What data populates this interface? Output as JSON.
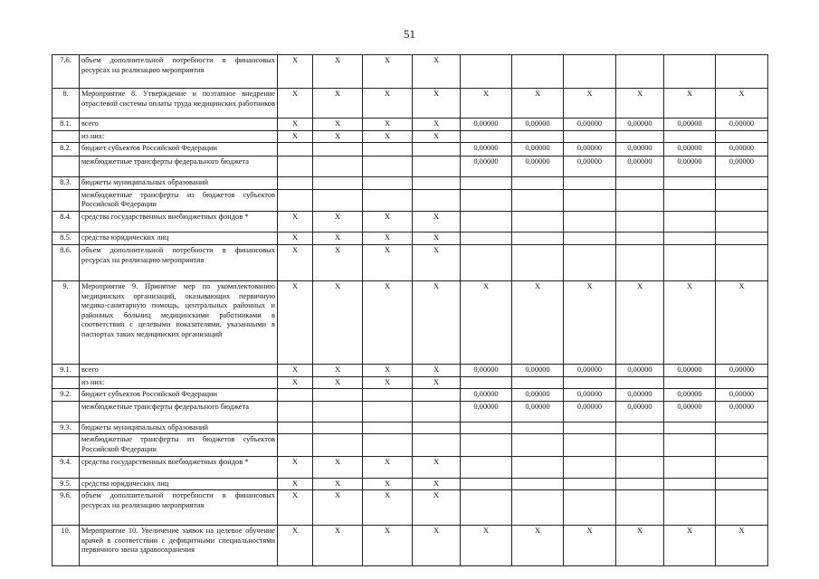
{
  "header": {
    "page_number": "51"
  },
  "table": {
    "rows": [
      [
        "7.6.",
        "объем дополнительной потребности в финансовых ресурсах на реализацию мероприятия",
        "X",
        "X",
        "X",
        "X",
        null,
        null,
        null,
        null,
        null,
        null
      ],
      [
        "8.",
        "Мероприятие 8. Утверждение и поэтапное внедрение отраслевой системы оплаты труда медицинских работников",
        "X",
        "X",
        "X",
        "X",
        "X",
        "X",
        "X",
        "X",
        "X",
        "X"
      ],
      [
        "8.1.",
        "всего",
        "X",
        "X",
        "X",
        "X",
        "0,00000",
        "0,00000",
        "0,00000",
        "0,00000",
        "0,00000",
        "0,00000"
      ],
      [
        null,
        "из них:",
        "X",
        "X",
        "X",
        "X",
        null,
        null,
        null,
        null,
        null,
        null
      ],
      [
        "8.2.",
        "бюджет субъектов Российской Федерации",
        null,
        null,
        null,
        null,
        "0,00000",
        "0,00000",
        "0,00000",
        "0,00000",
        "0,00000",
        "0,00000"
      ],
      [
        null,
        "межбюджетные трансферты федерального бюджета",
        null,
        null,
        null,
        null,
        "0,00000",
        "0,00000",
        "0,00000",
        "0,00000",
        "0,00000",
        "0,00000"
      ],
      [
        "8.3.",
        "бюджеты муниципальных образований",
        null,
        null,
        null,
        null,
        null,
        null,
        null,
        null,
        null,
        null
      ],
      [
        null,
        "межбюджетные трансферты из бюджетов субъектов Российской Федерации",
        null,
        null,
        null,
        null,
        null,
        null,
        null,
        null,
        null,
        null
      ],
      [
        "8.4.",
        "средства государственных внебюджетных фондов *",
        "X",
        "X",
        "X",
        "X",
        null,
        null,
        null,
        null,
        null,
        null
      ],
      [
        "8.5.",
        "средства юридических лиц",
        "X",
        "X",
        "X",
        "X",
        null,
        null,
        null,
        null,
        null,
        null
      ],
      [
        "8.6.",
        "объем дополнительной потребности в финансовых ресурсах на реализацию мероприятия",
        "X",
        "X",
        "X",
        "X",
        null,
        null,
        null,
        null,
        null,
        null
      ],
      [
        "9.",
        "Мероприятие 9. Принятие мер по укомплектованию медицинских организаций, оказывающих первичную медико-санитарную помощь, центральных районных и районных больниц медицинскими работниками в соответствии с целевыми показателями, указанными в паспортах таких медицинских организаций",
        "X",
        "X",
        "X",
        "X",
        "X",
        "X",
        "X",
        "X",
        "X",
        "X"
      ],
      [
        "9.1.",
        "всего",
        "X",
        "X",
        "X",
        "X",
        "0,00000",
        "0,00000",
        "0,00000",
        "0,00000",
        "0,00000",
        "0,00000"
      ],
      [
        null,
        "из них:",
        "X",
        "X",
        "X",
        "X",
        null,
        null,
        null,
        null,
        null,
        null
      ],
      [
        "9.2.",
        "бюджет субъектов Российской Федерации",
        null,
        null,
        null,
        null,
        "0,00000",
        "0,00000",
        "0,00000",
        "0,00000",
        "0,00000",
        "0,00000"
      ],
      [
        null,
        "межбюджетные трансферты федерального бюджета",
        null,
        null,
        null,
        null,
        "0,00000",
        "0,00000",
        "0,00000",
        "0,00000",
        "0,00000",
        "0,00000"
      ],
      [
        "9.3.",
        "бюджеты муниципальных образований",
        null,
        null,
        null,
        null,
        null,
        null,
        null,
        null,
        null,
        null
      ],
      [
        null,
        "межбюджетные трансферты из бюджетов субъектов Российской Федерации",
        null,
        null,
        null,
        null,
        null,
        null,
        null,
        null,
        null,
        null
      ],
      [
        "9.4.",
        "средства государственных внебюджетных фондов *",
        "X",
        "X",
        "X",
        "X",
        null,
        null,
        null,
        null,
        null,
        null
      ],
      [
        "9.5.",
        "средства юридических лиц",
        "X",
        "X",
        "X",
        "X",
        null,
        null,
        null,
        null,
        null,
        null
      ],
      [
        "9.6.",
        "объем дополнительной потребности в финансовых ресурсах на реализацию мероприятия",
        "X",
        "X",
        "X",
        "X",
        null,
        null,
        null,
        null,
        null,
        null
      ],
      [
        "10.",
        "Мероприятие 10. Увеличение заявок на целевое обучение врачей в соответствии с дефицитными специальностями первичного звена здравоохранения",
        "X",
        "X",
        "X",
        "X",
        "X",
        "X",
        "X",
        "X",
        "X",
        "X"
      ]
    ]
  }
}
